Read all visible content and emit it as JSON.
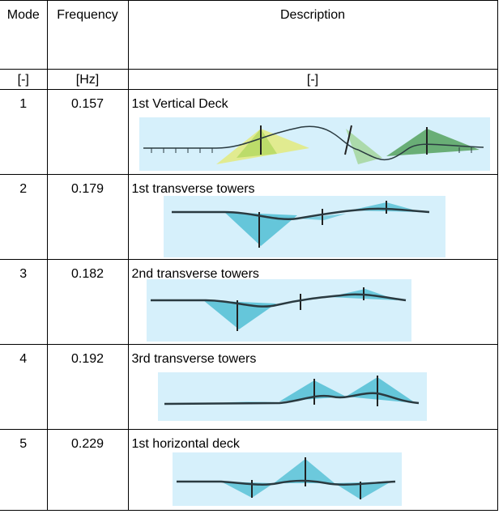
{
  "table": {
    "headers": {
      "mode": "Mode",
      "frequency": "Frequency",
      "description": "Description"
    },
    "units": {
      "mode": "[-]",
      "frequency": "[Hz]",
      "description": "[-]"
    },
    "rows": [
      {
        "mode": "1",
        "frequency": "0.157",
        "description": "1st Vertical Deck",
        "figure_icon": "mode-shape-figure"
      },
      {
        "mode": "2",
        "frequency": "0.179",
        "description": "1st transverse towers",
        "figure_icon": "mode-shape-figure"
      },
      {
        "mode": "3",
        "frequency": "0.182",
        "description": "2nd transverse towers",
        "figure_icon": "mode-shape-figure"
      },
      {
        "mode": "4",
        "frequency": "0.192",
        "description": "3rd transverse towers",
        "figure_icon": "mode-shape-figure"
      },
      {
        "mode": "5",
        "frequency": "0.229",
        "description": "1st horizontal deck",
        "figure_icon": "mode-shape-figure"
      }
    ]
  },
  "colors": {
    "figure_background": "#d6f0fb",
    "cable_cyan": "#3fb8cf",
    "cable_green": "#2e8b2e",
    "cable_yellow": "#e8e84a",
    "deck": "#2a3a40"
  }
}
